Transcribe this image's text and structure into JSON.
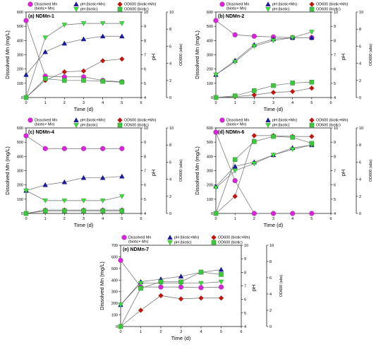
{
  "legend_labels": {
    "mn": "Dissolved Mn",
    "mn2": "(biotic+ Mn)",
    "ph_bm": "pH (biotic+Mn)",
    "ph_b": "pH (biotic)",
    "od_bm": "OD600 (biotic+Mn)",
    "od_b": "OD600 (biotic)"
  },
  "colors": {
    "mn": "#e020e0",
    "ph_bm": "#1a1aa8",
    "ph_b": "#3ce03c",
    "od_bm": "#c8140a",
    "od_b": "#3cc83c",
    "line": "#6b6b6b"
  },
  "chart_data": [
    {
      "type": "line",
      "title": "(a) NDMn-1",
      "xlabel": "Time (d)",
      "ylabel_left": "Dissolved Mn (mg/L)",
      "ylabel_ph": "pH",
      "ylabel_od": "OD600 (abs)",
      "xlim": [
        0,
        6
      ],
      "ylim_left": [
        0,
        600
      ],
      "ylim_ph": [
        4,
        10
      ],
      "ylim_od": [
        0,
        10
      ],
      "x_ticks": [
        "0",
        "1",
        "2",
        "3",
        "4",
        "5",
        "6"
      ],
      "yleft_ticks": [
        "0",
        "100",
        "200",
        "300",
        "400",
        "500",
        "600"
      ],
      "ph_ticks": [
        "4",
        "5",
        "6",
        "7",
        "8",
        "9",
        "10"
      ],
      "od_ticks": [
        "0",
        "2",
        "4",
        "6",
        "8",
        "10"
      ],
      "x": [
        0,
        1,
        2,
        3,
        4,
        5
      ],
      "series": [
        {
          "name": "Dissolved Mn (biotic+ Mn)",
          "axis": "left",
          "marker": "circle",
          "values": [
            540,
            150,
            145,
            145,
            120,
            110
          ]
        },
        {
          "name": "pH (biotic+Mn)",
          "axis": "ph",
          "marker": "triangle",
          "values": [
            5.6,
            7.2,
            7.8,
            8.1,
            8.3,
            8.3
          ]
        },
        {
          "name": "pH (biotic)",
          "axis": "ph",
          "marker": "triangle-down",
          "values": [
            4.0,
            8.2,
            9.1,
            9.2,
            9.2,
            9.2
          ]
        },
        {
          "name": "OD600 (biotic+Mn)",
          "axis": "od",
          "marker": "diamond",
          "values": [
            0,
            2.0,
            3.0,
            3.1,
            4.3,
            4.5
          ]
        },
        {
          "name": "OD600 (biotic)",
          "axis": "od",
          "marker": "square",
          "values": [
            0,
            2.2,
            2.0,
            2.0,
            1.9,
            1.8
          ]
        }
      ]
    },
    {
      "type": "line",
      "title": "(b) NDMn-2",
      "xlabel": "Time (d)",
      "ylabel_left": "Dissolved Mn (mg/L)",
      "ylabel_ph": "pH",
      "ylabel_od": "OD600 (abs)",
      "xlim": [
        0,
        6
      ],
      "ylim_left": [
        0,
        600
      ],
      "ylim_ph": [
        4,
        10
      ],
      "ylim_od": [
        0,
        10
      ],
      "x_ticks": [
        "0",
        "1",
        "2",
        "3",
        "4",
        "5",
        "6"
      ],
      "yleft_ticks": [
        "0",
        "100",
        "200",
        "300",
        "400",
        "500",
        "600"
      ],
      "ph_ticks": [
        "4",
        "5",
        "6",
        "7",
        "8",
        "9",
        "10"
      ],
      "od_ticks": [
        "0",
        "2",
        "4",
        "6",
        "8",
        "10"
      ],
      "x": [
        0,
        1,
        2,
        3,
        4,
        5
      ],
      "series": [
        {
          "name": "Dissolved Mn (biotic+ Mn)",
          "axis": "left",
          "marker": "circle",
          "values": [
            540,
            440,
            430,
            425,
            420,
            420
          ]
        },
        {
          "name": "pH (biotic+Mn)",
          "axis": "ph",
          "marker": "triangle",
          "values": [
            5.6,
            6.6,
            7.7,
            8.1,
            8.2,
            8.2
          ]
        },
        {
          "name": "pH (biotic)",
          "axis": "ph",
          "marker": "triangle-down",
          "values": [
            5.6,
            6.5,
            7.6,
            8.0,
            8.2,
            8.6
          ]
        },
        {
          "name": "OD600 (biotic+Mn)",
          "axis": "od",
          "marker": "diamond",
          "values": [
            0,
            0.1,
            0.3,
            0.6,
            0.7,
            1.1
          ]
        },
        {
          "name": "OD600 (biotic)",
          "axis": "od",
          "marker": "square",
          "values": [
            0,
            0.2,
            0.8,
            1.4,
            1.7,
            1.8
          ]
        }
      ]
    },
    {
      "type": "line",
      "title": "(c) NDMn-4",
      "xlabel": "Time (d)",
      "ylabel_left": "Dissolved Mn (mg/L)",
      "ylabel_ph": "pH",
      "ylabel_od": "OD600 (abs)",
      "xlim": [
        0,
        6
      ],
      "ylim_left": [
        0,
        600
      ],
      "ylim_ph": [
        4,
        10
      ],
      "ylim_od": [
        0,
        10
      ],
      "x_ticks": [
        "0",
        "1",
        "2",
        "3",
        "4",
        "5",
        "6"
      ],
      "yleft_ticks": [
        "0",
        "100",
        "200",
        "300",
        "400",
        "500",
        "600"
      ],
      "ph_ticks": [
        "4",
        "5",
        "6",
        "7",
        "8",
        "9",
        "10"
      ],
      "od_ticks": [
        "0",
        "2",
        "4",
        "6",
        "8",
        "10"
      ],
      "x": [
        0,
        1,
        2,
        3,
        4,
        5
      ],
      "series": [
        {
          "name": "Dissolved Mn (biotic+ Mn)",
          "axis": "left",
          "marker": "circle",
          "values": [
            545,
            455,
            455,
            455,
            455,
            455
          ]
        },
        {
          "name": "pH (biotic+Mn)",
          "axis": "ph",
          "marker": "triangle",
          "values": [
            5.6,
            6.0,
            6.2,
            6.5,
            6.5,
            6.6
          ]
        },
        {
          "name": "pH (biotic)",
          "axis": "ph",
          "marker": "triangle-down",
          "values": [
            5.6,
            4.9,
            4.9,
            4.9,
            4.9,
            5.2
          ]
        },
        {
          "name": "OD600 (biotic+Mn)",
          "axis": "od",
          "marker": "diamond",
          "values": [
            0,
            0.4,
            0.4,
            0.4,
            0.4,
            0.4
          ]
        },
        {
          "name": "OD600 (biotic)",
          "axis": "od",
          "marker": "square",
          "values": [
            0,
            0.3,
            0.3,
            0.3,
            0.3,
            0.3
          ]
        }
      ]
    },
    {
      "type": "line",
      "title": "(d) NDMn-6",
      "xlabel": "Time (d)",
      "ylabel_left": "Dissolved Mn (mg/L)",
      "ylabel_ph": "pH",
      "ylabel_od": "OD600 (abs)",
      "xlim": [
        0,
        6
      ],
      "ylim_left": [
        0,
        600
      ],
      "ylim_ph": [
        4,
        10
      ],
      "ylim_od": [
        0,
        10
      ],
      "x_ticks": [
        "0",
        "1",
        "2",
        "3",
        "4",
        "5",
        "6"
      ],
      "yleft_ticks": [
        "0",
        "100",
        "200",
        "300",
        "400",
        "500",
        "600"
      ],
      "ph_ticks": [
        "4",
        "5",
        "6",
        "7",
        "8",
        "9",
        "10"
      ],
      "od_ticks": [
        "0",
        "2",
        "4",
        "6",
        "8",
        "10"
      ],
      "x": [
        0,
        1,
        2,
        3,
        4,
        5
      ],
      "series": [
        {
          "name": "Dissolved Mn (biotic+ Mn)",
          "axis": "left",
          "marker": "circle",
          "values": [
            570,
            230,
            0,
            0,
            0,
            0
          ]
        },
        {
          "name": "pH (biotic+Mn)",
          "axis": "ph",
          "marker": "triangle",
          "values": [
            5.9,
            7.3,
            7.6,
            8.1,
            8.6,
            8.8
          ]
        },
        {
          "name": "pH (biotic)",
          "axis": "ph",
          "marker": "triangle-down",
          "values": [
            5.8,
            7.0,
            7.5,
            8.1,
            8.5,
            8.8
          ]
        },
        {
          "name": "OD600 (biotic+Mn)",
          "axis": "od",
          "marker": "diamond",
          "values": [
            0,
            2.0,
            9.1,
            9.1,
            9.0,
            9.0
          ]
        },
        {
          "name": "OD600 (biotic)",
          "axis": "od",
          "marker": "square",
          "values": [
            0,
            6.3,
            8.4,
            9.0,
            8.9,
            8.2
          ]
        }
      ]
    },
    {
      "type": "line",
      "title": "(e) NDMn-7",
      "xlabel": "Time (d)",
      "ylabel_left": "Dissolved Mn (mg/L)",
      "ylabel_ph": "pH",
      "ylabel_od": "OD600 (abs)",
      "xlim": [
        0,
        6
      ],
      "ylim_left": [
        0,
        700
      ],
      "ylim_ph": [
        4,
        10
      ],
      "ylim_od": [
        0,
        10
      ],
      "x_ticks": [
        "0",
        "1",
        "2",
        "3",
        "4",
        "5",
        "6"
      ],
      "yleft_ticks": [
        "0",
        "100",
        "200",
        "300",
        "400",
        "500",
        "600",
        "700"
      ],
      "ph_ticks": [
        "4",
        "5",
        "6",
        "7",
        "8",
        "9",
        "10"
      ],
      "od_ticks": [
        "0",
        "2",
        "4",
        "6",
        "8",
        "10"
      ],
      "x": [
        0,
        1,
        2,
        3,
        4,
        5
      ],
      "series": [
        {
          "name": "Dissolved Mn (biotic+ Mn)",
          "axis": "left",
          "marker": "circle",
          "values": [
            570,
            340,
            340,
            340,
            335,
            340
          ]
        },
        {
          "name": "pH (biotic+Mn)",
          "axis": "ph",
          "marker": "triangle",
          "values": [
            5.6,
            7.3,
            7.5,
            7.7,
            8.0,
            8.2
          ]
        },
        {
          "name": "pH (biotic)",
          "axis": "ph",
          "marker": "triangle-down",
          "values": [
            5.6,
            7.2,
            7.2,
            7.2,
            7.2,
            7.3
          ]
        },
        {
          "name": "OD600 (biotic+Mn)",
          "axis": "od",
          "marker": "diamond",
          "values": [
            0,
            2.0,
            3.8,
            3.4,
            3.5,
            3.5
          ]
        },
        {
          "name": "OD600 (biotic)",
          "axis": "od",
          "marker": "square",
          "values": [
            0,
            4.7,
            5.5,
            5.5,
            6.7,
            6.4
          ]
        }
      ]
    }
  ]
}
